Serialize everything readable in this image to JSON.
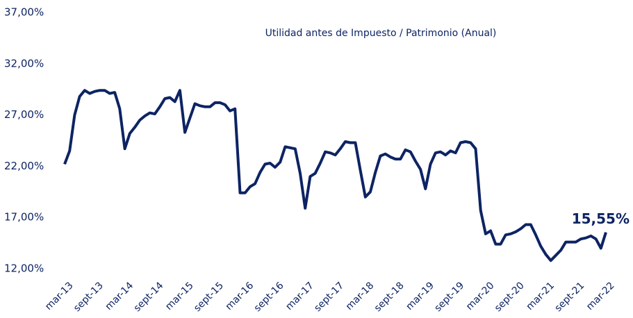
{
  "chart_data": {
    "type": "line",
    "title": "Utilidad antes de Impuesto / Patrimonio (Anual)",
    "categories": [
      "mar-13",
      null,
      null,
      null,
      null,
      null,
      "sept-13",
      null,
      null,
      null,
      null,
      null,
      "mar-14",
      null,
      null,
      null,
      null,
      null,
      "sept-14",
      null,
      null,
      null,
      null,
      null,
      "mar-15",
      null,
      null,
      null,
      null,
      null,
      "sept-15",
      null,
      null,
      null,
      null,
      null,
      "mar-16",
      null,
      null,
      null,
      null,
      null,
      "sept-16",
      null,
      null,
      null,
      null,
      null,
      "mar-17",
      null,
      null,
      null,
      null,
      null,
      "sept-17",
      null,
      null,
      null,
      null,
      null,
      "mar-18",
      null,
      null,
      null,
      null,
      null,
      "sept-18",
      null,
      null,
      null,
      null,
      null,
      "mar-19",
      null,
      null,
      null,
      null,
      null,
      "sept-19",
      null,
      null,
      null,
      null,
      null,
      "mar-20",
      null,
      null,
      null,
      null,
      null,
      "sept-20",
      null,
      null,
      null,
      null,
      null,
      "mar-21",
      null,
      null,
      null,
      null,
      null,
      "sept-21",
      null,
      null,
      null,
      null,
      null,
      "mar-22"
    ],
    "series": [
      {
        "color": "#0d2463",
        "values": [
          22.2,
          23.5,
          27,
          28.8,
          29.4,
          29.1,
          29.3,
          29.4,
          29.4,
          29.1,
          29.2,
          27.6,
          23.7,
          25.2,
          25.8,
          26.5,
          26.9,
          27.2,
          27.1,
          27.8,
          28.6,
          28.7,
          28.3,
          29.4,
          25.3,
          26.7,
          28.1,
          27.9,
          27.8,
          27.8,
          28.2,
          28.2,
          28.0,
          27.4,
          27.6,
          19.4,
          19.4,
          20.0,
          20.3,
          21.4,
          22.2,
          22.3,
          21.9,
          22.4,
          23.9,
          23.8,
          23.7,
          21.3,
          17.9,
          21.0,
          21.3,
          22.3,
          23.4,
          23.3,
          23.1,
          23.7,
          24.4,
          24.3,
          24.3,
          21.6,
          19.0,
          19.5,
          21.4,
          23.0,
          23.2,
          22.9,
          22.7,
          22.7,
          23.6,
          23.4,
          22.5,
          21.7,
          19.8,
          22.2,
          23.3,
          23.4,
          23.1,
          23.5,
          23.3,
          24.3,
          24.4,
          24.3,
          23.7,
          17.7,
          15.4,
          15.7,
          14.4,
          14.4,
          15.3,
          15.4,
          15.6,
          15.9,
          16.3,
          16.3,
          15.3,
          14.2,
          13.4,
          12.8,
          13.3,
          13.8,
          14.6,
          14.6,
          14.6,
          14.9,
          15.0,
          15.2,
          14.9,
          14.0,
          15.55
        ],
        "value_labels": [
          null,
          null,
          null,
          null,
          null,
          null,
          null,
          null,
          null,
          null,
          null,
          null,
          null,
          null,
          null,
          null,
          null,
          null,
          null,
          null,
          null,
          null,
          null,
          null,
          null,
          null,
          null,
          null,
          null,
          null,
          null,
          null,
          null,
          null,
          null,
          null,
          null,
          null,
          null,
          null,
          null,
          null,
          null,
          null,
          null,
          null,
          null,
          null,
          null,
          null,
          null,
          null,
          null,
          null,
          null,
          null,
          null,
          null,
          null,
          null,
          null,
          null,
          null,
          null,
          null,
          null,
          null,
          null,
          null,
          null,
          null,
          null,
          null,
          null,
          null,
          null,
          null,
          null,
          null,
          null,
          null,
          null,
          null,
          null,
          null,
          null,
          null,
          null,
          null,
          null,
          null,
          null,
          null,
          null,
          null,
          null,
          null,
          null,
          null,
          null,
          null,
          null,
          null,
          null,
          null,
          null,
          null,
          null,
          "15,55%"
        ]
      }
    ],
    "ylim": [
      12,
      37
    ],
    "yticks": [
      {
        "value": 12,
        "label": "12,00%"
      },
      {
        "value": 17,
        "label": "17,00%"
      },
      {
        "value": 22,
        "label": "22,00%"
      },
      {
        "value": 27,
        "label": "27,00%"
      },
      {
        "value": 32,
        "label": "32,00%"
      },
      {
        "value": 37,
        "label": "37,00%"
      }
    ],
    "grid": false
  }
}
